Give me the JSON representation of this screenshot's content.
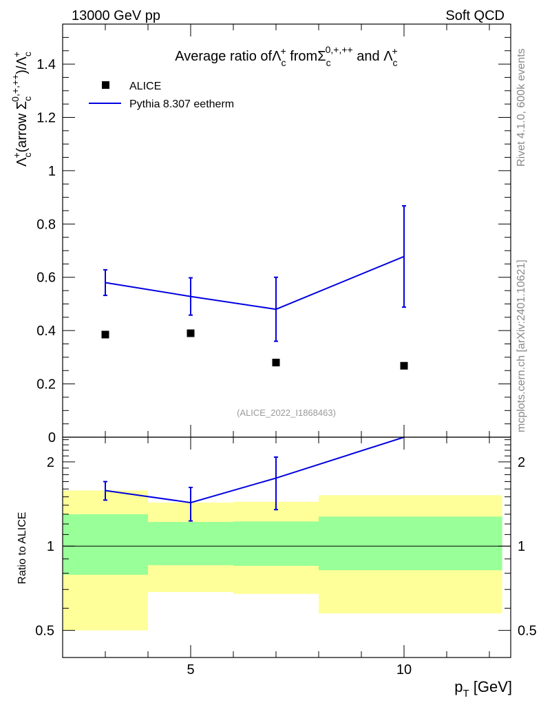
{
  "header": {
    "left_label": "13000 GeV pp",
    "right_label": "Soft QCD"
  },
  "side_labels": {
    "rivet": "Rivet 4.1.0,  600k events",
    "mcplots": "mcplots.cern.ch [arXiv:2401.10621]"
  },
  "colors": {
    "mc": "#0000e0",
    "data": "#000000",
    "band_inner": "#99ff99",
    "band_outer": "#ffff99",
    "analysis_label": "#999999"
  },
  "chart_data": [
    {
      "panel": "main",
      "type": "scatter",
      "title_parts": {
        "prefix": "Average ratio of",
        "lambda": "Λ",
        "sub_c": "c",
        "sup_plus": "+",
        "from": " from",
        "sigma": "Σ",
        "sigma_charges": "0,+,++",
        "and": " and"
      },
      "ylabel_parts": {
        "lambda": "Λ",
        "sub_c": "c",
        "sup_plus": "+",
        "arrow": "(arrow",
        "sigma": "Σ",
        "sigma_charges": "0,+,++",
        "close": ")/"
      },
      "analysis_label": "(ALICE_2022_I1868463)",
      "xlim": [
        2,
        12.5
      ],
      "ylim": [
        0,
        1.55
      ],
      "yticks": [
        "0",
        "0.2",
        "0.4",
        "0.6",
        "0.8",
        "1",
        "1.2",
        "1.4"
      ],
      "yticks_values": [
        0,
        0.2,
        0.4,
        0.6,
        0.8,
        1,
        1.2,
        1.4
      ],
      "legend": [
        {
          "name": "ALICE",
          "kind": "marker"
        },
        {
          "name": "Pythia 8.307 eetherm",
          "kind": "line"
        }
      ],
      "legend_position": "top-left",
      "series": [
        {
          "name": "ALICE",
          "kind": "points",
          "x": [
            3,
            5,
            7,
            10
          ],
          "y": [
            0.385,
            0.39,
            0.28,
            0.268
          ]
        },
        {
          "name": "Pythia 8.307 eetherm",
          "kind": "line",
          "x": [
            3,
            5,
            7,
            10
          ],
          "y": [
            0.58,
            0.528,
            0.48,
            0.678
          ],
          "err_low": [
            0.048,
            0.07,
            0.12,
            0.19
          ],
          "err_high": [
            0.048,
            0.07,
            0.12,
            0.19
          ]
        }
      ]
    },
    {
      "panel": "ratio",
      "type": "line",
      "ylabel": "Ratio to ALICE",
      "xlabel_main": "p",
      "xlabel_sub": "T",
      "xlabel_unit": " [GeV]",
      "xlim": [
        2,
        12.5
      ],
      "ylim": [
        0.4,
        2.45
      ],
      "scale": "log",
      "xticks": [
        "5",
        "10"
      ],
      "xticks_values": [
        5,
        10
      ],
      "yticks": [
        "0.5",
        "1",
        "2"
      ],
      "yticks_values": [
        0.5,
        1,
        2
      ],
      "reference": 1,
      "bands": [
        {
          "x_lo": 2,
          "x_hi": 4,
          "inner_lo": 0.79,
          "inner_hi": 1.3,
          "outer_lo": 0.5,
          "outer_hi": 1.58
        },
        {
          "x_lo": 4,
          "x_hi": 6,
          "inner_lo": 0.855,
          "inner_hi": 1.22,
          "outer_lo": 0.685,
          "outer_hi": 1.43
        },
        {
          "x_lo": 6,
          "x_hi": 8,
          "inner_lo": 0.85,
          "inner_hi": 1.225,
          "outer_lo": 0.675,
          "outer_hi": 1.44
        },
        {
          "x_lo": 8,
          "x_hi": 12.3,
          "inner_lo": 0.82,
          "inner_hi": 1.275,
          "outer_lo": 0.575,
          "outer_hi": 1.52
        }
      ],
      "series": [
        {
          "name": "Pythia 8.307 eetherm / ALICE",
          "x": [
            3,
            5,
            7,
            10
          ],
          "y": [
            1.58,
            1.43,
            1.75,
            2.45
          ],
          "err_low": [
            0.12,
            0.2,
            0.4,
            0
          ],
          "err_high": [
            0.12,
            0.19,
            0.33,
            0
          ]
        }
      ]
    }
  ]
}
